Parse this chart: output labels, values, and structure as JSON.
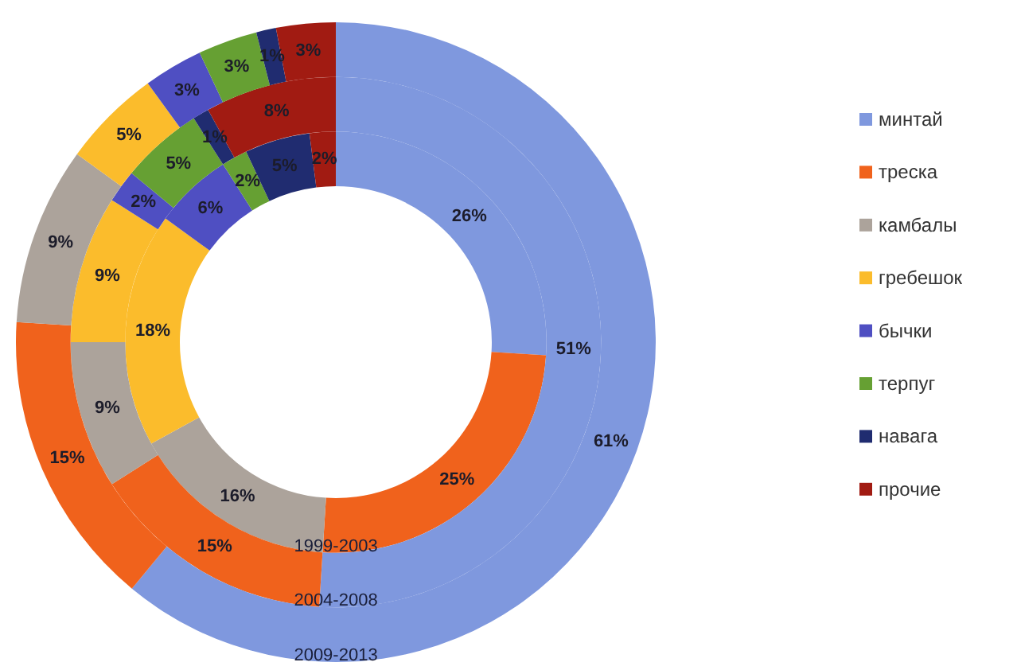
{
  "chart_data": {
    "type": "donut",
    "categories": [
      "минтай",
      "треска",
      "камбалы",
      "гребешок",
      "бычки",
      "терпуг",
      "навага",
      "прочие"
    ],
    "colors": [
      "#7f98de",
      "#f0621c",
      "#aca39b",
      "#fbbc2c",
      "#4f4fc2",
      "#66a033",
      "#202c70",
      "#a11b12"
    ],
    "series": [
      {
        "name": "1999-2003",
        "values": [
          26,
          25,
          16,
          18,
          6,
          2,
          5,
          2
        ],
        "value_labels": [
          "26%",
          "25%",
          "16%",
          "18%",
          "6%",
          "2%",
          "5%",
          "2%"
        ]
      },
      {
        "name": "2004-2008",
        "values": [
          51,
          15,
          9,
          9,
          2,
          5,
          1,
          8
        ],
        "value_labels": [
          "51%",
          "15%",
          "9%",
          "9%",
          "2%",
          "5%",
          "1%",
          "8%"
        ]
      },
      {
        "name": "2009-2013",
        "values": [
          61,
          15,
          9,
          5,
          3,
          3,
          1,
          3
        ],
        "value_labels": [
          "61%",
          "15%",
          "9%",
          "5%",
          "3%",
          "3%",
          "1%",
          "3%"
        ]
      }
    ],
    "legend": "right"
  }
}
